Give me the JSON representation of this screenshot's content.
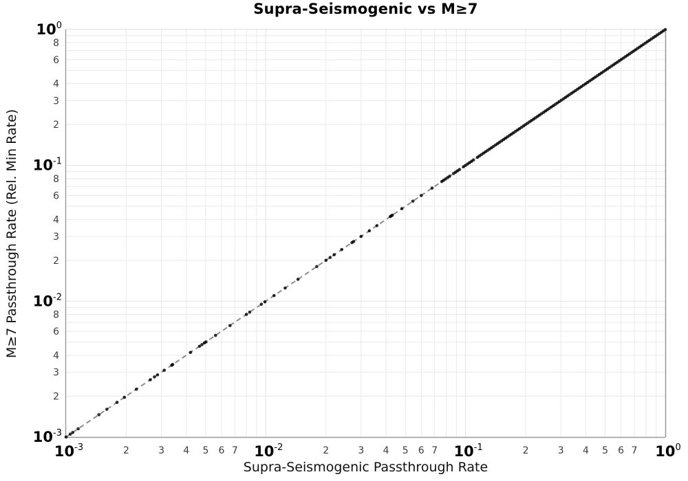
{
  "page": {
    "background": "#ffffff"
  },
  "chart_data": {
    "type": "scatter",
    "title": "Supra-Seismogenic vs M≥7",
    "xlabel": "Supra-Seismogenic Passthrough Rate",
    "ylabel": "M≥7 Passthrough Rate (Rel. Min Rate)",
    "x_scale": "log",
    "y_scale": "log",
    "xlim": [
      0.001,
      1.0
    ],
    "ylim": [
      0.001,
      1.0
    ],
    "grid": true,
    "legend": "none",
    "major_tick_exponents": [
      -3,
      -2,
      -1,
      0
    ],
    "minor_label_digits_x": [
      2,
      3,
      4,
      5,
      6,
      7
    ],
    "minor_label_digits_y": [
      2,
      3,
      4,
      6,
      8
    ],
    "grid_digits": [
      2,
      3,
      4,
      5,
      6,
      7,
      8,
      9
    ],
    "colors": {
      "marker": "#000000",
      "reference_line": "#8c8c8c",
      "grid_minor": "#e9e9e9",
      "grid_major": "#e2e2e2",
      "spine_left": "#999999",
      "spine_bottom": "#999999",
      "spine_right": "#909090",
      "spine_top": "#dedede",
      "major_label": "#000000",
      "minor_label": "#3d3d3d"
    },
    "reference_line": {
      "type": "identity",
      "style": "dashed",
      "from": 0.001,
      "to": 1.0
    },
    "points": {
      "y_equals_x": true,
      "marker_diameter_px": 4.6,
      "x": [
        0.001,
        0.00105,
        0.00108,
        0.00115,
        0.00146,
        0.0016,
        0.0018,
        0.00196,
        0.00225,
        0.00264,
        0.00277,
        0.00287,
        0.0031,
        0.00338,
        0.00342,
        0.0042,
        0.00466,
        0.00479,
        0.00493,
        0.00502,
        0.0056,
        0.00662,
        0.008,
        0.0083,
        0.0095,
        0.0099,
        0.011,
        0.0125,
        0.0145,
        0.018,
        0.02,
        0.021,
        0.022,
        0.024,
        0.027,
        0.0275,
        0.03,
        0.033,
        0.036,
        0.042,
        0.0425,
        0.043,
        0.048,
        0.0545,
        0.06,
        0.068,
        0.076,
        0.0776,
        0.0794,
        0.0813,
        0.0832,
        0.0871,
        0.0891,
        0.0912,
        0.0933,
        0.0977,
        0.1,
        0.1023,
        0.1047,
        0.1072,
        0.1096,
        0.1148,
        0.1175,
        0.1202,
        0.123,
        0.1259,
        0.1288,
        0.1318,
        0.1349,
        0.138,
        0.1413,
        0.1445,
        0.1479,
        0.1514,
        0.1549,
        0.1585,
        0.1622,
        0.166,
        0.1698,
        0.1738,
        0.1778,
        0.182,
        0.1862,
        0.1905,
        0.195,
        0.1995,
        0.2042,
        0.2089,
        0.2138,
        0.2188,
        0.2239,
        0.2291,
        0.2344,
        0.2399,
        0.2455,
        0.2512,
        0.257,
        0.263,
        0.2692,
        0.2754,
        0.2818,
        0.2884,
        0.2951,
        0.302,
        0.309,
        0.3162,
        0.3236,
        0.3311,
        0.3388,
        0.3467,
        0.3548,
        0.3631,
        0.3715,
        0.3802,
        0.389,
        0.3981,
        0.4074,
        0.4169,
        0.4266,
        0.4365,
        0.4467,
        0.4571,
        0.4677,
        0.4786,
        0.4898,
        0.5012,
        0.5129,
        0.5248,
        0.537,
        0.5495,
        0.5623,
        0.5754,
        0.5888,
        0.6026,
        0.6166,
        0.631,
        0.6457,
        0.6607,
        0.6761,
        0.6918,
        0.7079,
        0.7244,
        0.7413,
        0.7586,
        0.7762,
        0.7943,
        0.8128,
        0.8318,
        0.8511,
        0.871,
        0.8913,
        0.912,
        0.9333,
        0.955,
        0.9772,
        1.0
      ]
    }
  }
}
